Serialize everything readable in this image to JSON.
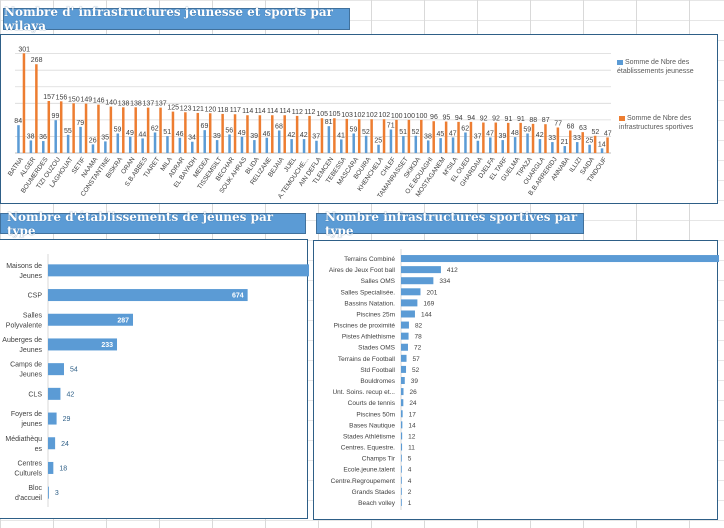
{
  "titles": {
    "top": "Nombre d' infrastructures jeunesse et sports par wilaya",
    "left": "Nombre d'établissements de jeunes par type",
    "right": "Nombre infrastructures sportives par type"
  },
  "colors": {
    "blue": "#5b9bd5",
    "orange": "#ed7d31",
    "title_bg": "#5b9bd5",
    "frame": "#2e5f87"
  },
  "chart_data": [
    {
      "type": "bar",
      "title": "Nombre d' infrastructures jeunesse et sports par wilaya",
      "xlabel": "",
      "ylabel": "",
      "ylim": [
        0,
        320
      ],
      "grid": true,
      "legend_position": "right",
      "categories": [
        "BATNA",
        "ALGER",
        "BOUMERDES",
        "TIZI OUZOU",
        "LAGHOUAT",
        "SETIF",
        "NAAMA",
        "CONSTANTINE",
        "BISKRA",
        "ORAN",
        "S.B.ABBES",
        "TIARET",
        "MILA",
        "ADRAR",
        "EL BAYADH",
        "MEDEA",
        "TISSEMSILT",
        "BECHAR",
        "SOUK AHRAS",
        "BLIDA",
        "RELIZANE",
        "BEJAIA",
        "JIJEL",
        "A.TEMOUCHE...",
        "AIN DEFLA",
        "TLEMCEN",
        "TEBESSA",
        "MASCARA",
        "BOUIRA",
        "KHENCHELA",
        "CHLEF",
        "TAMANRASSET",
        "SKIKDA",
        "O.E.BOUAGHI",
        "MOSTAGANEM",
        "M'SILA",
        "EL OUED",
        "GHARDAIA",
        "DJELFA",
        "EL TARF",
        "GUELMA",
        "TIPAZA",
        "OUARGLA",
        "B.B.ARRERIDJ",
        "ANNABA",
        "ILLIZI",
        "SAIDA",
        "TINDOUF"
      ],
      "series": [
        {
          "name": "Somme de Nbre des établissements jeunesse",
          "color": "#5b9bd5",
          "values": [
            84,
            38,
            36,
            99,
            55,
            79,
            26,
            35,
            59,
            49,
            44,
            62,
            51,
            46,
            34,
            69,
            39,
            56,
            49,
            39,
            46,
            68,
            42,
            42,
            37,
            81,
            41,
            59,
            52,
            25,
            71,
            51,
            52,
            38,
            45,
            47,
            62,
            37,
            47,
            39,
            48,
            59,
            42,
            33,
            21,
            33,
            25,
            14
          ]
        },
        {
          "name": "Somme de Nbre des infrastructures sportives",
          "color": "#ed7d31",
          "values": [
            301,
            268,
            157,
            156,
            150,
            149,
            146,
            140,
            138,
            138,
            137,
            137,
            125,
            123,
            121,
            120,
            118,
            117,
            114,
            114,
            114,
            114,
            112,
            112,
            105,
            105,
            103,
            102,
            102,
            102,
            100,
            100,
            100,
            96,
            95,
            94,
            94,
            92,
            92,
            91,
            91,
            88,
            87,
            77,
            68,
            63,
            52,
            47
          ]
        }
      ]
    },
    {
      "type": "bar",
      "orientation": "horizontal",
      "title": "Nombre d'établissements de jeunes par type",
      "xlabel": "",
      "ylabel": "",
      "xlim": [
        0,
        1050
      ],
      "categories": [
        "Maisons de Jeunes",
        "CSP",
        "Salles Polyvalente",
        "Auberges de Jeunes",
        "Camps de Jeunes",
        "CLS",
        "Foyers de jeunes",
        "Médiathèques",
        "Centres Culturels",
        "Bloc d'accueil"
      ],
      "values": [
        942,
        674,
        287,
        233,
        54,
        42,
        29,
        24,
        18,
        3
      ]
    },
    {
      "type": "bar",
      "orientation": "horizontal",
      "title": "Nombre infrastructures sportives par type",
      "xlabel": "",
      "ylabel": "",
      "xlim": [
        0,
        3900
      ],
      "categories": [
        "Terrains Combiné",
        "Aires de Jeux Foot ball",
        "Salles OMS",
        "Salles Specialisée.",
        "Bassins Natation.",
        "Piscines      25m",
        "Piscines de proximité",
        "Pistes Athlethisme",
        "Stades OMS",
        "Terrains de Football",
        "Std Football",
        "Bouldromes",
        "Unt. Soins. recup et...",
        "Courts de tennis",
        "Piscines       50m",
        "Bases Nautique",
        "Stades Athlétisme",
        "Centres. Equestre.",
        "Champs Tir",
        "Ecole.jeune.talent",
        "Centre.Regroupement",
        "Grands Stades",
        "Beach volley"
      ],
      "values": [
        3807,
        412,
        334,
        201,
        169,
        144,
        82,
        78,
        72,
        57,
        52,
        39,
        26,
        24,
        17,
        14,
        12,
        11,
        5,
        4,
        4,
        2,
        1
      ]
    }
  ]
}
